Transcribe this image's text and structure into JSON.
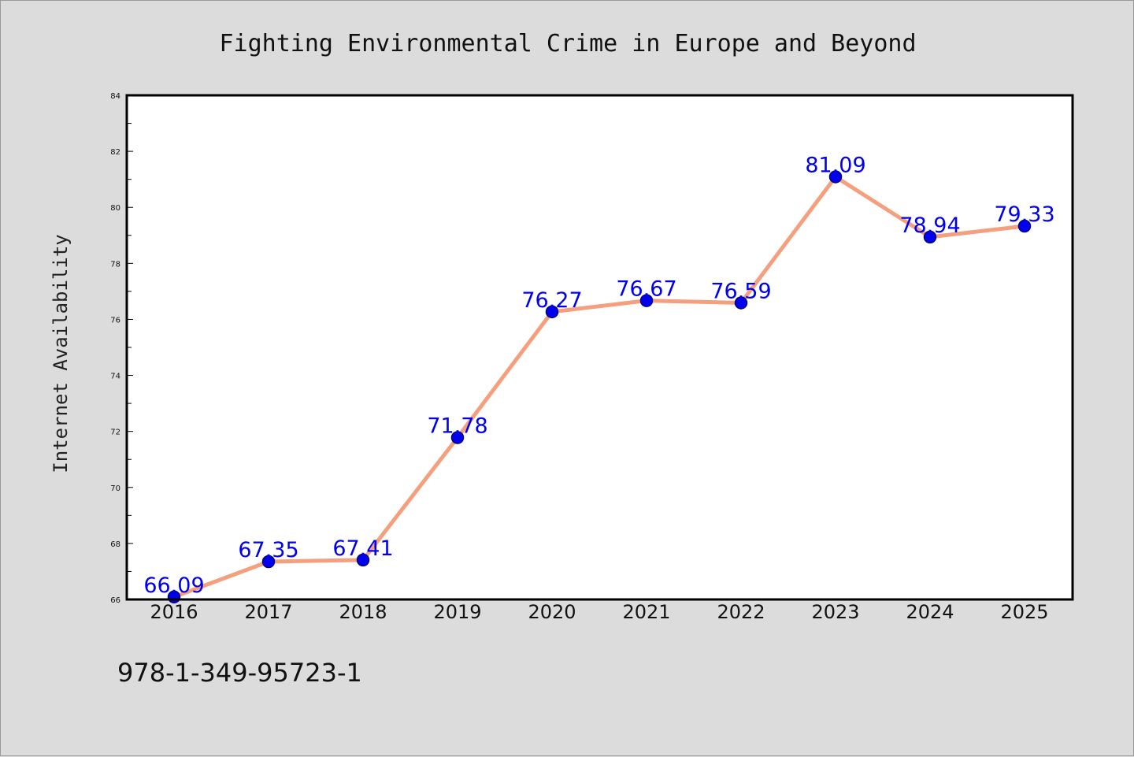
{
  "chart_data": {
    "type": "line",
    "title": "Fighting Environmental Crime in Europe and Beyond",
    "xlabel": "",
    "ylabel": "Internet Availability",
    "categories": [
      "2016",
      "2017",
      "2018",
      "2019",
      "2020",
      "2021",
      "2022",
      "2023",
      "2024",
      "2025"
    ],
    "series": [
      {
        "values": [
          66.09,
          67.35,
          67.41,
          71.78,
          76.27,
          76.67,
          76.59,
          81.09,
          78.94,
          79.33
        ],
        "labels": [
          "66.09",
          "67.35",
          "67.41",
          "71.78",
          "76.27",
          "76.67",
          "76.59",
          "81.09",
          "78.94",
          "79.33"
        ]
      }
    ],
    "ylim": [
      66,
      84
    ],
    "yticks": [
      "66",
      "68",
      "70",
      "72",
      "74",
      "76",
      "78",
      "80",
      "82",
      "84"
    ],
    "grid": false,
    "legend": "none"
  },
  "footer": {
    "text": "978-1-349-95723-1"
  },
  "colors": {
    "line": "#f4a07f",
    "marker": "#0000ee",
    "marker_edge": "#000080",
    "data_label": "#0000ee",
    "plot_background": "#ffffff",
    "page_background": "#dcdcdc"
  }
}
